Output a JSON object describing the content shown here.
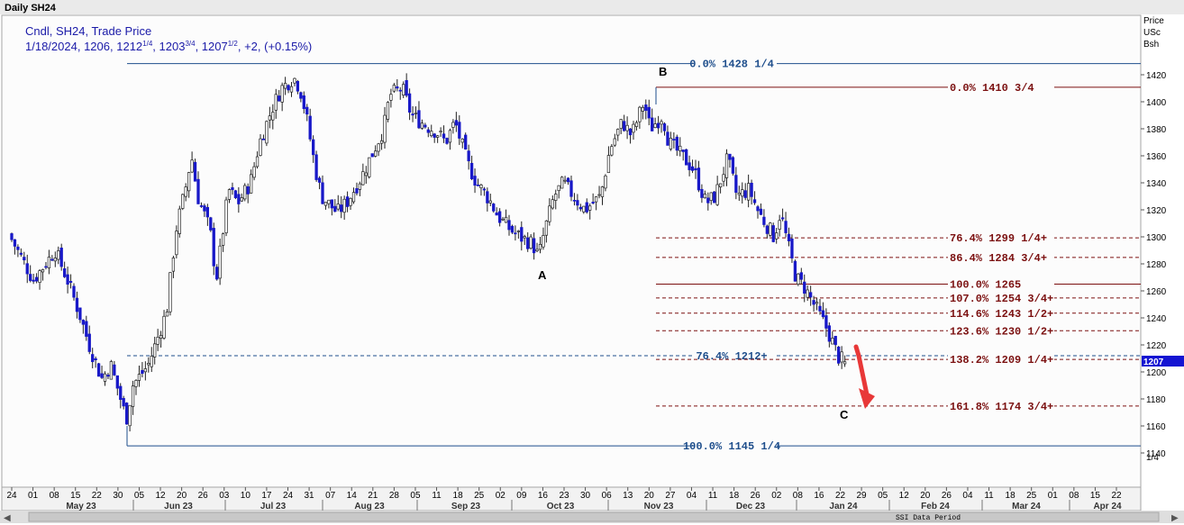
{
  "window": {
    "title": "Daily SH24",
    "period_label": "SSI Data Period"
  },
  "legend": {
    "line1": "Cndl, SH24, Trade Price",
    "date": "1/18/2024",
    "open": "1206",
    "high_main": "1212",
    "high_frac": "1/4",
    "low_main": "1203",
    "low_frac": "3/4",
    "close_main": "1207",
    "close_frac": "1/2",
    "change": "+2",
    "change_pct": "(+0.15%)"
  },
  "y_axis": {
    "title_lines": [
      "Price",
      "USc",
      "Bsh"
    ],
    "ticks": [
      "1420",
      "1400",
      "1380",
      "1360",
      "1340",
      "1320",
      "1300",
      "1280",
      "1260",
      "1240",
      "1220",
      "1200",
      "1180",
      "1160",
      "1140"
    ],
    "current_price": "1207",
    "scale_note": "1/4"
  },
  "x_axis": {
    "day_ticks": [
      "24",
      "01",
      "08",
      "15",
      "22",
      "30",
      "05",
      "12",
      "20",
      "26",
      "03",
      "10",
      "17",
      "24",
      "31",
      "07",
      "14",
      "21",
      "28",
      "05",
      "11",
      "18",
      "25",
      "02",
      "09",
      "16",
      "23",
      "30",
      "06",
      "13",
      "20",
      "27",
      "04",
      "11",
      "18",
      "26",
      "02",
      "08",
      "16",
      "22",
      "29",
      "05",
      "12",
      "20",
      "26",
      "04",
      "11",
      "18",
      "25",
      "01",
      "08",
      "15",
      "22"
    ],
    "month_labels": [
      "May 23",
      "Jun 23",
      "Jul 23",
      "Aug 23",
      "Sep 23",
      "Oct 23",
      "Nov 23",
      "Dec 23",
      "Jan 24",
      "Feb 24",
      "Mar 24",
      "Apr 24"
    ]
  },
  "points": {
    "a": "A",
    "b": "B",
    "c": "C"
  },
  "fib_levels": [
    {
      "pct": "0.0%",
      "value": "1428 1/4",
      "price": 1428.25,
      "group": "big",
      "style": "solid",
      "color": "#1e4e8c"
    },
    {
      "pct": "0.0%",
      "value": "1410 3/4",
      "price": 1410.75,
      "group": "small",
      "style": "solid",
      "color": "#7b1010"
    },
    {
      "pct": "76.4%",
      "value": "1299 1/4+",
      "price": 1299.25,
      "group": "small",
      "style": "dashed",
      "color": "#7b1010"
    },
    {
      "pct": "86.4%",
      "value": "1284 3/4+",
      "price": 1284.75,
      "group": "small",
      "style": "dashed",
      "color": "#7b1010"
    },
    {
      "pct": "100.0%",
      "value": "1265",
      "price": 1265,
      "group": "small",
      "style": "solid",
      "color": "#7b1010"
    },
    {
      "pct": "107.0%",
      "value": "1254 3/4+",
      "price": 1254.75,
      "group": "small",
      "style": "dashed",
      "color": "#7b1010"
    },
    {
      "pct": "114.6%",
      "value": "1243 1/2+",
      "price": 1243.5,
      "group": "small",
      "style": "dashed",
      "color": "#7b1010"
    },
    {
      "pct": "123.6%",
      "value": "1230 1/2+",
      "price": 1230.5,
      "group": "small",
      "style": "dashed",
      "color": "#7b1010"
    },
    {
      "pct": "76.4%",
      "value": "1212+",
      "price": 1212,
      "group": "big",
      "style": "dashed",
      "color": "#1e4e8c"
    },
    {
      "pct": "138.2%",
      "value": "1209 1/4+",
      "price": 1209.25,
      "group": "small",
      "style": "dashed",
      "color": "#7b1010"
    },
    {
      "pct": "161.8%",
      "value": "1174 3/4+",
      "price": 1174.75,
      "group": "small",
      "style": "dashed",
      "color": "#7b1010"
    },
    {
      "pct": "100.0%",
      "value": "1145 1/4",
      "price": 1145.25,
      "group": "big",
      "style": "solid",
      "color": "#1e4e8c"
    }
  ],
  "colors": {
    "up_candle": "#ffffff",
    "down_candle": "#1818c8",
    "wick": "#222222",
    "arrow": "#e83838",
    "legend_text": "#1a1aa8",
    "price_tag": "#1414d2"
  },
  "chart_data": {
    "type": "candlestick",
    "title": "Daily SH24",
    "ylabel": "Price USc Bsh",
    "ylim": [
      1130,
      1430
    ],
    "x_start": "2023-04-24",
    "x_end": "2024-04-22",
    "last_bar": {
      "date": "2024-01-18",
      "open": 1206,
      "high": 1212.25,
      "low": 1203.75,
      "close": 1207.5
    },
    "closes": [
      {
        "date": "2023-04-24",
        "close": 1298
      },
      {
        "date": "2023-05-01",
        "close": 1268
      },
      {
        "date": "2023-05-08",
        "close": 1290
      },
      {
        "date": "2023-05-12",
        "close": 1268
      },
      {
        "date": "2023-05-16",
        "close": 1242
      },
      {
        "date": "2023-05-19",
        "close": 1220
      },
      {
        "date": "2023-05-23",
        "close": 1195
      },
      {
        "date": "2023-05-26",
        "close": 1205
      },
      {
        "date": "2023-05-31",
        "close": 1165
      },
      {
        "date": "2023-06-02",
        "close": 1190
      },
      {
        "date": "2023-06-07",
        "close": 1205
      },
      {
        "date": "2023-06-09",
        "close": 1218
      },
      {
        "date": "2023-06-13",
        "close": 1245
      },
      {
        "date": "2023-06-16",
        "close": 1305
      },
      {
        "date": "2023-06-19",
        "close": 1335
      },
      {
        "date": "2023-06-21",
        "close": 1360
      },
      {
        "date": "2023-06-23",
        "close": 1330
      },
      {
        "date": "2023-06-27",
        "close": 1305
      },
      {
        "date": "2023-06-29",
        "close": 1268
      },
      {
        "date": "2023-07-03",
        "close": 1335
      },
      {
        "date": "2023-07-06",
        "close": 1325
      },
      {
        "date": "2023-07-10",
        "close": 1340
      },
      {
        "date": "2023-07-13",
        "close": 1370
      },
      {
        "date": "2023-07-17",
        "close": 1395
      },
      {
        "date": "2023-07-20",
        "close": 1410
      },
      {
        "date": "2023-07-24",
        "close": 1418
      },
      {
        "date": "2023-07-26",
        "close": 1410
      },
      {
        "date": "2023-07-28",
        "close": 1390
      },
      {
        "date": "2023-07-31",
        "close": 1350
      },
      {
        "date": "2023-08-02",
        "close": 1330
      },
      {
        "date": "2023-08-07",
        "close": 1318
      },
      {
        "date": "2023-08-10",
        "close": 1325
      },
      {
        "date": "2023-08-15",
        "close": 1345
      },
      {
        "date": "2023-08-18",
        "close": 1360
      },
      {
        "date": "2023-08-22",
        "close": 1380
      },
      {
        "date": "2023-08-24",
        "close": 1405
      },
      {
        "date": "2023-08-28",
        "close": 1410
      },
      {
        "date": "2023-08-31",
        "close": 1390
      },
      {
        "date": "2023-09-05",
        "close": 1382
      },
      {
        "date": "2023-09-08",
        "close": 1378
      },
      {
        "date": "2023-09-11",
        "close": 1370
      },
      {
        "date": "2023-09-14",
        "close": 1385
      },
      {
        "date": "2023-09-18",
        "close": 1355
      },
      {
        "date": "2023-09-21",
        "close": 1340
      },
      {
        "date": "2023-09-25",
        "close": 1328
      },
      {
        "date": "2023-09-28",
        "close": 1315
      },
      {
        "date": "2023-10-02",
        "close": 1305
      },
      {
        "date": "2023-10-05",
        "close": 1300
      },
      {
        "date": "2023-10-09",
        "close": 1295
      },
      {
        "date": "2023-10-11",
        "close": 1285
      },
      {
        "date": "2023-10-13",
        "close": 1305
      },
      {
        "date": "2023-10-16",
        "close": 1330
      },
      {
        "date": "2023-10-19",
        "close": 1340
      },
      {
        "date": "2023-10-23",
        "close": 1328
      },
      {
        "date": "2023-10-26",
        "close": 1320
      },
      {
        "date": "2023-10-31",
        "close": 1330
      },
      {
        "date": "2023-11-03",
        "close": 1365
      },
      {
        "date": "2023-11-07",
        "close": 1385
      },
      {
        "date": "2023-11-10",
        "close": 1375
      },
      {
        "date": "2023-11-14",
        "close": 1400
      },
      {
        "date": "2023-11-16",
        "close": 1380
      },
      {
        "date": "2023-11-20",
        "close": 1390
      },
      {
        "date": "2023-11-22",
        "close": 1370
      },
      {
        "date": "2023-11-27",
        "close": 1358
      },
      {
        "date": "2023-11-30",
        "close": 1350
      },
      {
        "date": "2023-12-04",
        "close": 1325
      },
      {
        "date": "2023-12-07",
        "close": 1330
      },
      {
        "date": "2023-12-11",
        "close": 1358
      },
      {
        "date": "2023-12-14",
        "close": 1330
      },
      {
        "date": "2023-12-18",
        "close": 1335
      },
      {
        "date": "2023-12-21",
        "close": 1318
      },
      {
        "date": "2023-12-26",
        "close": 1300
      },
      {
        "date": "2023-12-28",
        "close": 1318
      },
      {
        "date": "2024-01-02",
        "close": 1270
      },
      {
        "date": "2024-01-05",
        "close": 1262
      },
      {
        "date": "2024-01-09",
        "close": 1245
      },
      {
        "date": "2024-01-12",
        "close": 1232
      },
      {
        "date": "2024-01-16",
        "close": 1210
      },
      {
        "date": "2024-01-18",
        "close": 1207.5
      }
    ]
  }
}
